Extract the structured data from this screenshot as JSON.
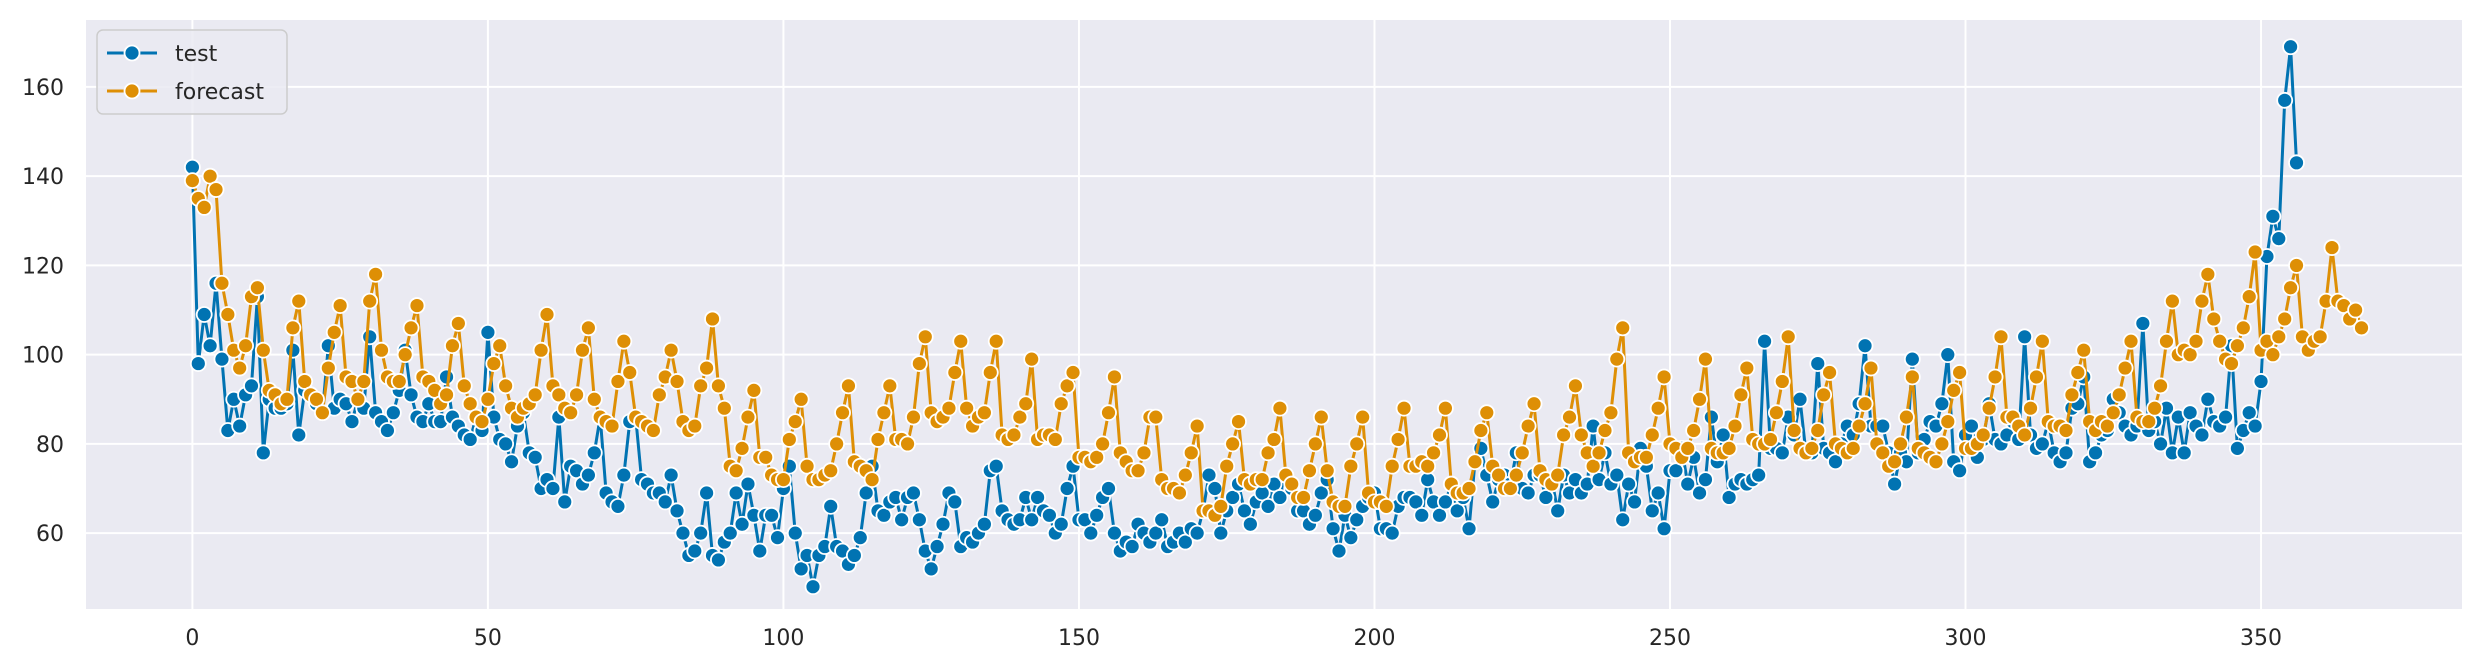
{
  "chart_data": {
    "type": "line",
    "title": "",
    "xlabel": "",
    "ylabel": "",
    "xlim": [
      -18,
      384
    ],
    "ylim": [
      43,
      175
    ],
    "xticks": [
      0,
      50,
      100,
      150,
      200,
      250,
      300,
      350
    ],
    "yticks": [
      60,
      80,
      100,
      120,
      140,
      160
    ],
    "grid": true,
    "legend_position": "top-left",
    "series": [
      {
        "name": "test",
        "color": "#0173b2",
        "values": [
          142,
          98,
          109,
          102,
          116,
          99,
          83,
          90,
          84,
          91,
          93,
          113,
          78,
          90,
          88,
          88,
          89,
          101,
          82,
          92,
          91,
          89,
          87,
          102,
          88,
          90,
          89,
          85,
          90,
          88,
          104,
          87,
          85,
          83,
          87,
          92,
          101,
          91,
          86,
          85,
          89,
          85,
          85,
          95,
          86,
          84,
          82,
          81,
          86,
          83,
          105,
          86,
          81,
          80,
          76,
          84,
          87,
          78,
          77,
          70,
          72,
          70,
          86,
          67,
          75,
          74,
          71,
          73,
          78,
          86,
          69,
          67,
          66,
          73,
          85,
          86,
          72,
          71,
          69,
          69,
          67,
          73,
          65,
          60,
          55,
          56,
          60,
          69,
          55,
          54,
          58,
          60,
          69,
          62,
          71,
          64,
          56,
          64,
          64,
          59,
          70,
          75,
          60,
          52,
          55,
          48,
          55,
          57,
          66,
          57,
          56,
          53,
          55,
          59,
          69,
          75,
          65,
          64,
          67,
          68,
          63,
          68,
          69,
          63,
          56,
          52,
          57,
          62,
          69,
          67,
          57,
          59,
          58,
          60,
          62,
          74,
          75,
          65,
          63,
          62,
          63,
          68,
          63,
          68,
          65,
          64,
          60,
          62,
          70,
          75,
          63,
          63,
          60,
          64,
          68,
          70,
          60,
          56,
          58,
          57,
          62,
          60,
          58,
          60,
          63,
          57,
          58,
          60,
          58,
          61,
          60,
          65,
          73,
          70,
          60,
          65,
          68,
          71,
          65,
          62,
          67,
          69,
          66,
          71,
          68,
          73,
          70,
          65,
          65,
          62,
          64,
          69,
          72,
          61,
          56,
          64,
          59,
          63,
          66,
          68,
          69,
          61,
          61,
          60,
          66,
          68,
          68,
          67,
          64,
          72,
          67,
          64,
          67,
          71,
          65,
          68,
          61,
          76,
          79,
          73,
          67,
          72,
          73,
          71,
          78,
          70,
          69,
          73,
          73,
          68,
          72,
          65,
          73,
          69,
          72,
          69,
          71,
          84,
          72,
          78,
          71,
          73,
          63,
          71,
          67,
          79,
          75,
          65,
          69,
          61,
          74,
          74,
          79,
          71,
          77,
          69,
          72,
          86,
          76,
          82,
          68,
          71,
          72,
          71,
          72,
          73,
          103,
          79,
          79,
          78,
          86,
          82,
          90,
          78,
          78,
          98,
          79,
          78,
          76,
          80,
          84,
          82,
          89,
          102,
          84,
          84,
          84,
          78,
          71,
          78,
          76,
          99,
          78,
          81,
          85,
          84,
          89,
          100,
          76,
          74,
          82,
          84,
          77,
          81,
          89,
          81,
          80,
          82,
          85,
          81,
          104,
          82,
          79,
          80,
          85,
          78,
          76,
          78,
          88,
          89,
          95,
          76,
          78,
          82,
          83,
          90,
          87,
          84,
          82,
          84,
          107,
          83,
          85,
          80,
          88,
          78,
          86,
          78,
          87,
          84,
          82,
          90,
          85,
          84,
          86,
          102,
          79,
          83,
          87,
          84,
          94,
          122,
          131,
          126,
          157,
          169,
          143
        ]
      },
      {
        "name": "forecast",
        "color": "#de8f05",
        "values": [
          139,
          135,
          133,
          140,
          137,
          116,
          109,
          101,
          97,
          102,
          113,
          115,
          101,
          92,
          91,
          89,
          90,
          106,
          112,
          94,
          91,
          90,
          87,
          97,
          105,
          111,
          95,
          94,
          90,
          94,
          112,
          118,
          101,
          95,
          94,
          94,
          100,
          106,
          111,
          95,
          94,
          92,
          89,
          91,
          102,
          107,
          93,
          89,
          86,
          85,
          90,
          98,
          102,
          93,
          88,
          86,
          88,
          89,
          91,
          101,
          109,
          93,
          91,
          88,
          87,
          91,
          101,
          106,
          90,
          86,
          85,
          84,
          94,
          103,
          96,
          86,
          85,
          84,
          83,
          91,
          95,
          101,
          94,
          85,
          83,
          84,
          93,
          97,
          108,
          93,
          88,
          75,
          74,
          79,
          86,
          92,
          77,
          77,
          73,
          72,
          72,
          81,
          85,
          90,
          75,
          72,
          72,
          73,
          74,
          80,
          87,
          93,
          76,
          75,
          74,
          72,
          81,
          87,
          93,
          81,
          81,
          80,
          86,
          98,
          104,
          87,
          85,
          86,
          88,
          96,
          103,
          88,
          84,
          86,
          87,
          96,
          103,
          82,
          81,
          82,
          86,
          89,
          99,
          81,
          82,
          82,
          81,
          89,
          93,
          96,
          77,
          77,
          76,
          77,
          80,
          87,
          95,
          78,
          76,
          74,
          74,
          78,
          86,
          86,
          72,
          70,
          70,
          69,
          73,
          78,
          84,
          65,
          65,
          64,
          66,
          75,
          80,
          85,
          72,
          71,
          72,
          72,
          78,
          81,
          88,
          73,
          71,
          68,
          68,
          74,
          80,
          86,
          74,
          67,
          66,
          66,
          75,
          80,
          86,
          69,
          67,
          67,
          66,
          75,
          81,
          88,
          75,
          75,
          76,
          75,
          78,
          82,
          88,
          71,
          69,
          69,
          70,
          76,
          83,
          87,
          75,
          73,
          70,
          70,
          73,
          78,
          84,
          89,
          74,
          72,
          71,
          73,
          82,
          86,
          93,
          82,
          78,
          75,
          78,
          83,
          87,
          99,
          106,
          78,
          76,
          77,
          77,
          82,
          88,
          95,
          80,
          79,
          77,
          79,
          83,
          90,
          99,
          79,
          78,
          78,
          79,
          84,
          91,
          97,
          81,
          80,
          80,
          81,
          87,
          94,
          104,
          83,
          79,
          78,
          79,
          83,
          91,
          96,
          80,
          79,
          78,
          79,
          84,
          89,
          97,
          80,
          78,
          75,
          76,
          80,
          86,
          95,
          79,
          78,
          77,
          76,
          80,
          85,
          92,
          96,
          79,
          79,
          80,
          82,
          88,
          95,
          104,
          86,
          86,
          84,
          82,
          88,
          95,
          103,
          85,
          84,
          84,
          83,
          91,
          96,
          101,
          85,
          83,
          85,
          84,
          87,
          91,
          97,
          103,
          86,
          85,
          85,
          88,
          93,
          103,
          112,
          100,
          101,
          100,
          103,
          112,
          118,
          108,
          103,
          99,
          98,
          102,
          106,
          113,
          123,
          101,
          103,
          100,
          104,
          108,
          115,
          120,
          104,
          101,
          103,
          104,
          112,
          124,
          112,
          111,
          108,
          110,
          106
        ]
      }
    ]
  }
}
